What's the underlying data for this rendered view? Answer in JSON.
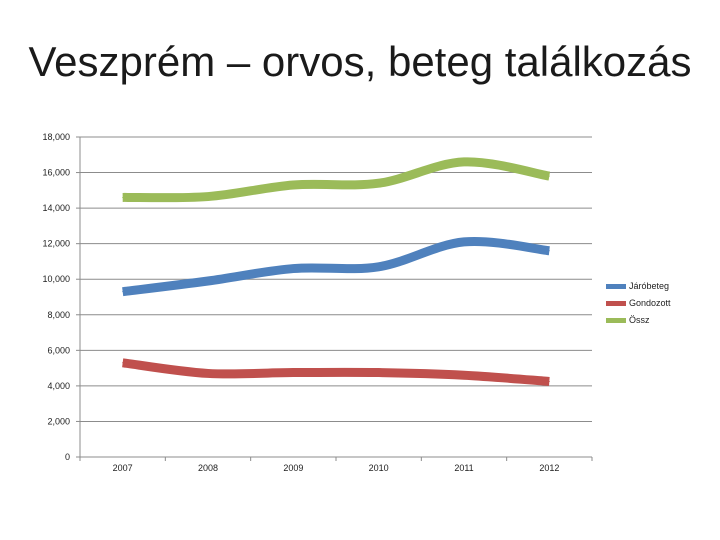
{
  "slide": {
    "title": "Veszprém – orvos, beteg találkozás"
  },
  "chart_data": {
    "type": "line",
    "title": "",
    "xlabel": "",
    "ylabel": "",
    "categories": [
      "2007",
      "2008",
      "2009",
      "2010",
      "2011",
      "2012"
    ],
    "ylim": [
      0,
      18000
    ],
    "yticks": [
      0,
      2000,
      4000,
      6000,
      8000,
      10000,
      12000,
      14000,
      16000,
      18000
    ],
    "ytick_labels": [
      "0",
      "2,000",
      "4,000",
      "6,000",
      "8,000",
      "10,000",
      "12,000",
      "14,000",
      "16,000",
      "18,000"
    ],
    "grid": true,
    "legend_position": "right",
    "smooth": true,
    "series": [
      {
        "name": "Járóbeteg",
        "color": "#4f81bd",
        "values": [
          9300,
          9900,
          10600,
          10700,
          12100,
          11600
        ]
      },
      {
        "name": "Gondozott",
        "color": "#c0504d",
        "values": [
          5300,
          4700,
          4750,
          4750,
          4600,
          4250
        ]
      },
      {
        "name": "Össz",
        "color": "#9bbb59",
        "values": [
          14600,
          14650,
          15300,
          15400,
          16600,
          15800
        ]
      }
    ]
  }
}
